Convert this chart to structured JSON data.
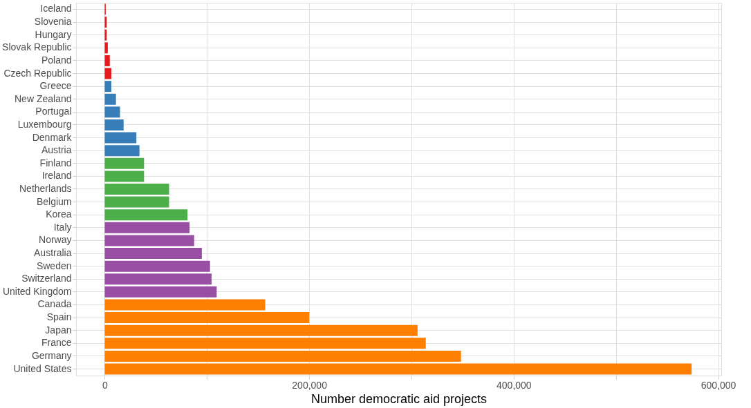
{
  "chart_data": {
    "type": "bar",
    "orientation": "horizontal",
    "xlabel": "Number democratic aid projects",
    "categories": [
      "Iceland",
      "Slovenia",
      "Hungary",
      "Slovak Republic",
      "Poland",
      "Czech Republic",
      "Greece",
      "New Zealand",
      "Portugal",
      "Luxembourg",
      "Denmark",
      "Austria",
      "Finland",
      "Ireland",
      "Netherlands",
      "Belgium",
      "Korea",
      "Italy",
      "Norway",
      "Australia",
      "Sweden",
      "Switzerland",
      "United Kingdom",
      "Canada",
      "Spain",
      "Japan",
      "France",
      "Germany",
      "United States"
    ],
    "values": [
      1000,
      2000,
      2000,
      3000,
      5000,
      6500,
      6500,
      11000,
      15000,
      18500,
      31000,
      34000,
      38500,
      38500,
      63000,
      63000,
      81000,
      83000,
      87500,
      95000,
      103000,
      104500,
      109500,
      157000,
      200000,
      306000,
      314000,
      348500,
      574000
    ],
    "colors": [
      "#e41a1c",
      "#e41a1c",
      "#e41a1c",
      "#e41a1c",
      "#e41a1c",
      "#e41a1c",
      "#377eb8",
      "#377eb8",
      "#377eb8",
      "#377eb8",
      "#377eb8",
      "#377eb8",
      "#4daf4a",
      "#4daf4a",
      "#4daf4a",
      "#4daf4a",
      "#4daf4a",
      "#984ea3",
      "#984ea3",
      "#984ea3",
      "#984ea3",
      "#984ea3",
      "#984ea3",
      "#ff7f00",
      "#ff7f00",
      "#ff7f00",
      "#ff7f00",
      "#ff7f00",
      "#ff7f00"
    ],
    "xlim": [
      -28000,
      603000
    ],
    "xticks": [
      0,
      {
        "value": 100000,
        "label": null
      },
      {
        "value": 200000,
        "label": "200,000"
      },
      {
        "value": 300000,
        "label": null
      },
      {
        "value": 400000,
        "label": "400,000"
      },
      {
        "value": 500000,
        "label": null
      },
      {
        "value": 600000,
        "label": "600,000"
      }
    ],
    "grid": true,
    "legend": false
  }
}
